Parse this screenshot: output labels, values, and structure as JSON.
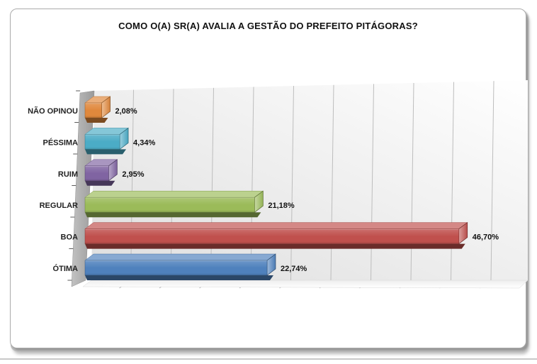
{
  "title": "COMO O(A) SR(A) AVALIA A GESTÃO DO PREFEITO PITÁGORAS?",
  "page": {
    "background": "#ffffff",
    "frame_border_color": "#ababab",
    "divider_color": "#c9c9c9"
  },
  "chart_data": {
    "type": "bar",
    "orientation": "horizontal",
    "style": "3d-excel",
    "title": "COMO O(A) SR(A) AVALIA A GESTÃO DO PREFEITO PITÁGORAS?",
    "categories": [
      "NÃO OPINOU",
      "PÉSSIMA",
      "RUIM",
      "REGULAR",
      "BOA",
      "ÓTIMA"
    ],
    "values": [
      2.08,
      4.34,
      2.95,
      21.18,
      46.7,
      22.74
    ],
    "value_labels": [
      "2,08%",
      "4,34%",
      "2,95%",
      "21,18%",
      "46,70%",
      "22,74%"
    ],
    "bar_colors": [
      "#E0883C",
      "#4BACC6",
      "#8064A2",
      "#9BBB59",
      "#C0504D",
      "#4F81BD"
    ],
    "category_order": "top-to-bottom",
    "xlabel": "",
    "ylabel": "",
    "axis_min_percent": 0,
    "axis_max_percent": 55,
    "gridline_step_percent": 5,
    "grid": true,
    "legend": false,
    "wall_color": "#a8a8a8",
    "gridline_color": "#bdbdbd",
    "plot_bg_top": "#ffffff",
    "plot_bg_bottom": "#dedede",
    "label_color": "#111111"
  }
}
